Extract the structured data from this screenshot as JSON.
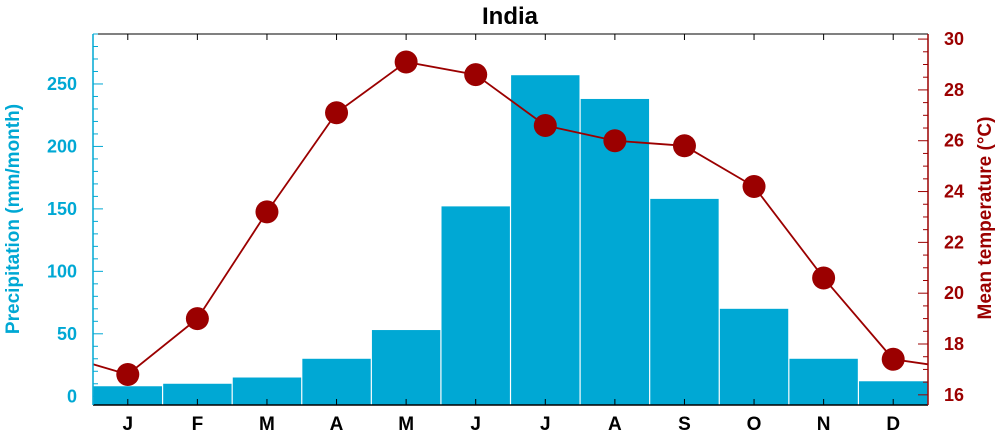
{
  "chart_data": {
    "type": "bar",
    "title": "India",
    "categories": [
      "J",
      "F",
      "M",
      "A",
      "M",
      "J",
      "J",
      "A",
      "S",
      "O",
      "N",
      "D"
    ],
    "series": [
      {
        "type": "bar",
        "axis": "left",
        "values": [
          8,
          10,
          15,
          30,
          53,
          152,
          257,
          238,
          158,
          70,
          30,
          12
        ]
      },
      {
        "type": "line",
        "axis": "right",
        "values": [
          16.8,
          19.0,
          23.2,
          27.1,
          29.1,
          28.6,
          26.6,
          26.0,
          25.8,
          24.2,
          20.6,
          17.4
        ]
      }
    ],
    "ylabel": "Precipitation (mm/month)",
    "ylim": [
      -7,
      290
    ],
    "yticks": [
      0,
      50,
      100,
      150,
      200,
      250
    ],
    "y2label": "Mean temperature (°C)",
    "y2lim": [
      15.6,
      30.2
    ],
    "y2ticks": [
      16,
      18,
      20,
      22,
      24,
      26,
      28,
      30
    ],
    "grid": false,
    "colors": {
      "bars": "#00a8d4",
      "line": "#9b0000",
      "left_axis": "#00a8d4",
      "right_axis": "#9b0000"
    }
  }
}
